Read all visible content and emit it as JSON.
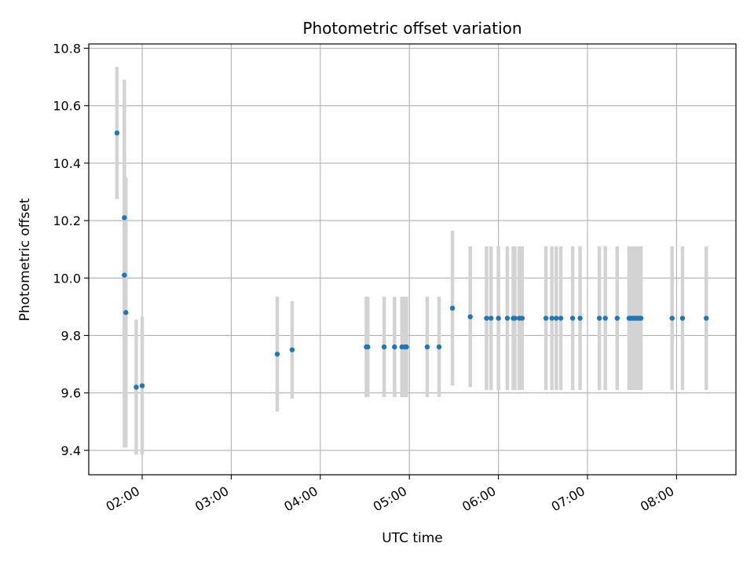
{
  "chart_data": {
    "type": "scatter",
    "title": "Photometric offset variation",
    "xlabel": "UTC time",
    "ylabel": "Photometric offset",
    "grid": true,
    "xlim": [
      "01:24",
      "08:40"
    ],
    "ylim": [
      9.315,
      10.815
    ],
    "x_ticks": [
      "02:00",
      "03:00",
      "04:00",
      "05:00",
      "06:00",
      "07:00",
      "08:00"
    ],
    "y_ticks": [
      "9.4",
      "9.6",
      "9.8",
      "10.0",
      "10.2",
      "10.4",
      "10.6",
      "10.8"
    ],
    "colors": {
      "marker": "#1f77b4",
      "errorbar": "#d3d3d3",
      "grid": "#b0b0b0"
    },
    "series": [
      {
        "x": [
          "01:43",
          "01:48",
          "01:48",
          "01:49",
          "01:56",
          "02:00",
          "03:31",
          "03:41",
          "04:31",
          "04:32",
          "04:43",
          "04:50",
          "04:55",
          "04:57",
          "04:58",
          "05:12",
          "05:20",
          "05:29",
          "05:41",
          "05:52",
          "05:55",
          "06:00",
          "06:06",
          "06:10",
          "06:11",
          "06:14",
          "06:16",
          "06:32",
          "06:36",
          "06:39",
          "06:42",
          "06:50",
          "06:55",
          "07:08",
          "07:12",
          "07:20",
          "07:28",
          "07:29",
          "07:30",
          "07:31",
          "07:32",
          "07:33",
          "07:34",
          "07:35",
          "07:36",
          "07:57",
          "08:04",
          "08:20"
        ],
        "y": [
          10.505,
          10.21,
          10.01,
          9.88,
          9.62,
          9.625,
          9.735,
          9.75,
          9.76,
          9.76,
          9.76,
          9.76,
          9.76,
          9.76,
          9.76,
          9.76,
          9.76,
          9.895,
          9.865,
          9.86,
          9.86,
          9.86,
          9.86,
          9.86,
          9.86,
          9.86,
          9.86,
          9.86,
          9.86,
          9.86,
          9.86,
          9.86,
          9.86,
          9.86,
          9.86,
          9.86,
          9.86,
          9.86,
          9.86,
          9.86,
          9.86,
          9.86,
          9.86,
          9.86,
          9.86,
          9.86,
          9.86,
          9.86
        ],
        "yerr": [
          0.23,
          0.48,
          0.6,
          0.47,
          0.235,
          0.24,
          0.2,
          0.17,
          0.175,
          0.175,
          0.175,
          0.175,
          0.175,
          0.175,
          0.175,
          0.175,
          0.175,
          0.27,
          0.245,
          0.25,
          0.25,
          0.25,
          0.25,
          0.25,
          0.25,
          0.25,
          0.25,
          0.25,
          0.25,
          0.25,
          0.25,
          0.25,
          0.25,
          0.25,
          0.25,
          0.25,
          0.25,
          0.25,
          0.25,
          0.25,
          0.25,
          0.25,
          0.25,
          0.25,
          0.25,
          0.25,
          0.25,
          0.25
        ]
      }
    ]
  }
}
